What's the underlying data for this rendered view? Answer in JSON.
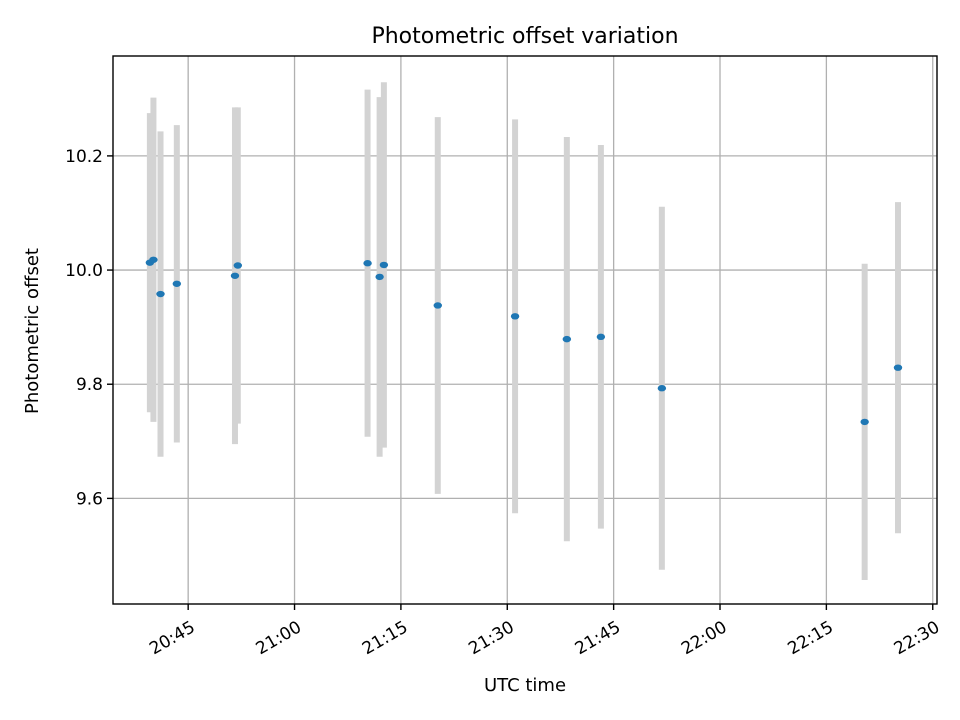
{
  "chart_data": {
    "type": "scatter",
    "title": "Photometric offset variation",
    "xlabel": "UTC time",
    "ylabel": "Photometric offset",
    "x_tick_labels": [
      "20:45",
      "21:00",
      "21:15",
      "21:30",
      "21:45",
      "22:00",
      "22:15",
      "22:30"
    ],
    "y_tick_labels": [
      "9.6",
      "9.8",
      "10.0",
      "10.2"
    ],
    "y_ticks": [
      9.6,
      9.8,
      10.0,
      10.2
    ],
    "xlim": [
      "20:34.4",
      "22:30.6"
    ],
    "ylim": [
      9.415,
      10.375
    ],
    "grid": true,
    "colors": {
      "point": "#1f77b4",
      "errorbar": "#d3d3d3",
      "grid": "#b0b0b0"
    },
    "points": [
      {
        "x": "20:39.6",
        "y": 10.013,
        "yerr": 0.262
      },
      {
        "x": "20:40.1",
        "y": 10.018,
        "yerr": 0.284
      },
      {
        "x": "20:41.1",
        "y": 9.958,
        "yerr": 0.285
      },
      {
        "x": "20:43.4",
        "y": 9.976,
        "yerr": 0.278
      },
      {
        "x": "20:51.6",
        "y": 9.99,
        "yerr": 0.295
      },
      {
        "x": "20:52.0",
        "y": 10.008,
        "yerr": 0.277
      },
      {
        "x": "21:10.3",
        "y": 10.012,
        "yerr": 0.304
      },
      {
        "x": "21:12.0",
        "y": 9.988,
        "yerr": 0.315
      },
      {
        "x": "21:12.6",
        "y": 10.009,
        "yerr": 0.32
      },
      {
        "x": "21:20.2",
        "y": 9.938,
        "yerr": 0.33
      },
      {
        "x": "21:31.1",
        "y": 9.919,
        "yerr": 0.345
      },
      {
        "x": "21:38.4",
        "y": 9.879,
        "yerr": 0.354
      },
      {
        "x": "21:43.2",
        "y": 9.883,
        "yerr": 0.336
      },
      {
        "x": "21:51.8",
        "y": 9.793,
        "yerr": 0.318
      },
      {
        "x": "22:20.4",
        "y": 9.734,
        "yerr": 0.277
      },
      {
        "x": "22:25.1",
        "y": 9.829,
        "yerr": 0.29
      }
    ]
  }
}
